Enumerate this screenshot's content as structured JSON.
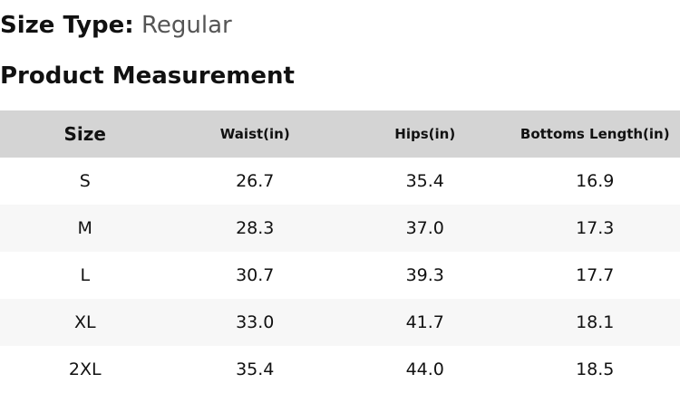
{
  "size_type": {
    "label": "Size Type:",
    "value": "Regular"
  },
  "section_title": "Product Measurement",
  "table": {
    "headers": [
      "Size",
      "Waist(in)",
      "Hips(in)",
      "Bottoms Length(in)"
    ],
    "rows": [
      [
        "S",
        "26.7",
        "35.4",
        "16.9"
      ],
      [
        "M",
        "28.3",
        "37.0",
        "17.3"
      ],
      [
        "L",
        "30.7",
        "39.3",
        "17.7"
      ],
      [
        "XL",
        "33.0",
        "41.7",
        "18.1"
      ],
      [
        "2XL",
        "35.4",
        "44.0",
        "18.5"
      ]
    ]
  },
  "colors": {
    "header_bg": "#d4d4d4",
    "alt_row_bg": "#f7f7f7"
  }
}
